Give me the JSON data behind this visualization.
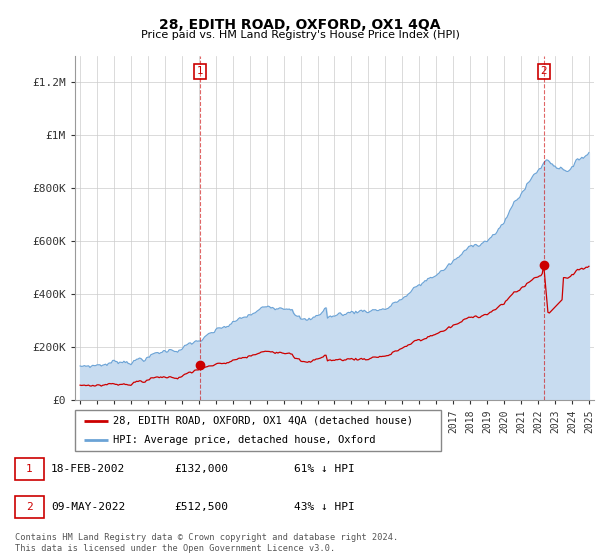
{
  "title": "28, EDITH ROAD, OXFORD, OX1 4QA",
  "subtitle": "Price paid vs. HM Land Registry's House Price Index (HPI)",
  "property_label": "28, EDITH ROAD, OXFORD, OX1 4QA (detached house)",
  "hpi_label": "HPI: Average price, detached house, Oxford",
  "transaction1_date": "18-FEB-2002",
  "transaction1_price": "£132,000",
  "transaction1_hpi": "61% ↓ HPI",
  "transaction2_date": "09-MAY-2022",
  "transaction2_price": "£512,500",
  "transaction2_hpi": "43% ↓ HPI",
  "footer": "Contains HM Land Registry data © Crown copyright and database right 2024.\nThis data is licensed under the Open Government Licence v3.0.",
  "hpi_color": "#6BA3D6",
  "hpi_fill_color": "#C8DCF0",
  "property_color": "#CC0000",
  "ylim_max": 1300000,
  "yticks": [
    0,
    200000,
    400000,
    600000,
    800000,
    1000000,
    1200000
  ],
  "ytick_labels": [
    "£0",
    "£200K",
    "£400K",
    "£600K",
    "£800K",
    "£1M",
    "£1.2M"
  ]
}
